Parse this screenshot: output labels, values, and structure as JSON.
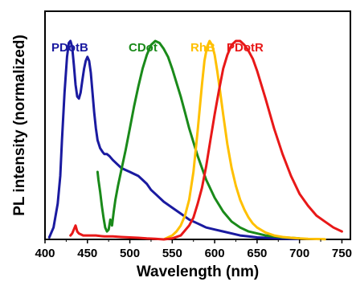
{
  "chart_data": {
    "type": "line",
    "title": "",
    "xlabel": "Wavelength (nm)",
    "ylabel": "PL intensity (normalized)",
    "xlim": [
      400,
      760
    ],
    "ylim": [
      0,
      1.15
    ],
    "x_ticks": [
      "400",
      "450",
      "500",
      "550",
      "600",
      "650",
      "700",
      "750"
    ],
    "y_ticks": [],
    "grid": false,
    "series": [
      {
        "name": "PDotB",
        "color": "#1a1aa0",
        "x": [
          405,
          410,
          415,
          418,
          420,
          423,
          426,
          428,
          430,
          432,
          434,
          436,
          438,
          440,
          442,
          444,
          446,
          448,
          450,
          452,
          454,
          456,
          458,
          460,
          462,
          465,
          468,
          470,
          473,
          476,
          480,
          485,
          490,
          495,
          500,
          505,
          510,
          515,
          520,
          525,
          530,
          540,
          550,
          560,
          570,
          580,
          590,
          600,
          610,
          620,
          630,
          640,
          650,
          660,
          670,
          680,
          690,
          700
        ],
        "values": [
          0.01,
          0.06,
          0.18,
          0.32,
          0.5,
          0.74,
          0.92,
          0.99,
          1.0,
          0.97,
          0.88,
          0.78,
          0.72,
          0.71,
          0.74,
          0.8,
          0.86,
          0.9,
          0.92,
          0.9,
          0.84,
          0.74,
          0.64,
          0.56,
          0.5,
          0.46,
          0.44,
          0.43,
          0.43,
          0.42,
          0.4,
          0.38,
          0.36,
          0.35,
          0.34,
          0.33,
          0.32,
          0.3,
          0.28,
          0.25,
          0.23,
          0.19,
          0.16,
          0.13,
          0.1,
          0.08,
          0.06,
          0.05,
          0.04,
          0.03,
          0.02,
          0.015,
          0.01,
          0.008,
          0.006,
          0.004,
          0.003,
          0.002
        ]
      },
      {
        "name": "CDot",
        "color": "#1a8a1a",
        "x": [
          462,
          463,
          465,
          467,
          469,
          471,
          473,
          475,
          477,
          479,
          481,
          483,
          486,
          490,
          495,
          500,
          505,
          510,
          515,
          520,
          525,
          530,
          535,
          540,
          545,
          550,
          555,
          560,
          565,
          570,
          580,
          590,
          600,
          610,
          620,
          630,
          640,
          650,
          660,
          670,
          680,
          690,
          700
        ],
        "values": [
          0.34,
          0.3,
          0.24,
          0.17,
          0.11,
          0.06,
          0.04,
          0.05,
          0.1,
          0.07,
          0.14,
          0.2,
          0.27,
          0.35,
          0.45,
          0.56,
          0.67,
          0.77,
          0.86,
          0.93,
          0.98,
          1.0,
          0.99,
          0.96,
          0.92,
          0.86,
          0.79,
          0.72,
          0.64,
          0.56,
          0.42,
          0.3,
          0.21,
          0.14,
          0.09,
          0.06,
          0.04,
          0.03,
          0.02,
          0.015,
          0.01,
          0.008,
          0.005
        ]
      },
      {
        "name": "RhB",
        "color": "#ffc000",
        "x": [
          540,
          545,
          550,
          555,
          560,
          565,
          570,
          575,
          580,
          585,
          588,
          591,
          594,
          597,
          600,
          603,
          606,
          610,
          615,
          620,
          625,
          630,
          635,
          640,
          645,
          650,
          660,
          670,
          680,
          690,
          700,
          710,
          720,
          730
        ],
        "values": [
          0.0,
          0.01,
          0.02,
          0.04,
          0.07,
          0.12,
          0.2,
          0.34,
          0.55,
          0.78,
          0.9,
          0.97,
          1.0,
          0.98,
          0.93,
          0.85,
          0.76,
          0.63,
          0.48,
          0.36,
          0.27,
          0.2,
          0.15,
          0.11,
          0.08,
          0.06,
          0.035,
          0.02,
          0.012,
          0.008,
          0.005,
          0.003,
          0.002,
          0.001
        ]
      },
      {
        "name": "PDotR",
        "color": "#e81818",
        "x": [
          430,
          432,
          434,
          436,
          438,
          440,
          445,
          450,
          460,
          470,
          480,
          490,
          500,
          510,
          520,
          530,
          540,
          550,
          560,
          570,
          575,
          580,
          585,
          590,
          595,
          600,
          605,
          610,
          615,
          620,
          625,
          630,
          635,
          640,
          645,
          650,
          660,
          670,
          680,
          690,
          700,
          710,
          720,
          730,
          740,
          750
        ],
        "values": [
          0.02,
          0.03,
          0.05,
          0.07,
          0.04,
          0.03,
          0.02,
          0.02,
          0.02,
          0.015,
          0.015,
          0.012,
          0.01,
          0.008,
          0.005,
          0.003,
          0.0,
          0.005,
          0.02,
          0.07,
          0.11,
          0.18,
          0.26,
          0.37,
          0.5,
          0.63,
          0.75,
          0.86,
          0.93,
          0.98,
          1.0,
          1.0,
          0.98,
          0.95,
          0.91,
          0.85,
          0.71,
          0.56,
          0.43,
          0.32,
          0.23,
          0.17,
          0.12,
          0.09,
          0.06,
          0.04
        ]
      }
    ],
    "series_labels": [
      "PDotB",
      "CDot",
      "RhB",
      "PDotR"
    ]
  }
}
